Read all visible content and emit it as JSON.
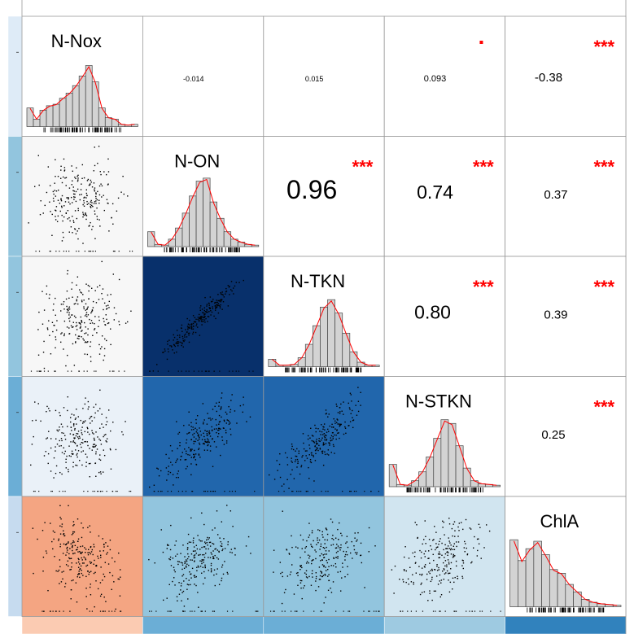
{
  "chart_data": {
    "type": "scatter",
    "variables": [
      "N-Nox",
      "N-ON",
      "N-TKN",
      "N-STKN",
      "ChlA"
    ],
    "correlations": [
      {
        "row": 0,
        "col": 1,
        "r": -0.014,
        "label": "-0.014",
        "stars": ""
      },
      {
        "row": 0,
        "col": 2,
        "r": 0.015,
        "label": "0.015",
        "stars": ""
      },
      {
        "row": 0,
        "col": 3,
        "r": 0.093,
        "label": "0.093",
        "stars": "·"
      },
      {
        "row": 0,
        "col": 4,
        "r": -0.38,
        "label": "-0.38",
        "stars": "***"
      },
      {
        "row": 1,
        "col": 2,
        "r": 0.96,
        "label": "0.96",
        "stars": "***"
      },
      {
        "row": 1,
        "col": 3,
        "r": 0.74,
        "label": "0.74",
        "stars": "***"
      },
      {
        "row": 1,
        "col": 4,
        "r": 0.37,
        "label": "0.37",
        "stars": "***"
      },
      {
        "row": 2,
        "col": 3,
        "r": 0.8,
        "label": "0.80",
        "stars": "***"
      },
      {
        "row": 2,
        "col": 4,
        "r": 0.39,
        "label": "0.39",
        "stars": "***"
      },
      {
        "row": 3,
        "col": 4,
        "r": 0.25,
        "label": "0.25",
        "stars": "***"
      }
    ],
    "histograms": [
      [
        0.25,
        0.1,
        0.22,
        0.28,
        0.3,
        0.38,
        0.45,
        0.55,
        0.68,
        0.82,
        0.6,
        0.25,
        0.12,
        0.1,
        0.03,
        0.02,
        0.03
      ],
      [
        0.2,
        0.03,
        0.02,
        0.1,
        0.25,
        0.45,
        0.68,
        0.88,
        0.92,
        0.6,
        0.38,
        0.2,
        0.1,
        0.06,
        0.03,
        0.02
      ],
      [
        0.1,
        0.02,
        0.02,
        0.03,
        0.12,
        0.3,
        0.55,
        0.8,
        0.9,
        0.72,
        0.45,
        0.2,
        0.06,
        0.02,
        0.02
      ],
      [
        0.3,
        0.03,
        0.02,
        0.08,
        0.2,
        0.4,
        0.65,
        0.9,
        0.85,
        0.55,
        0.25,
        0.08,
        0.04,
        0.03,
        0.02
      ],
      [
        0.9,
        0.62,
        0.78,
        0.88,
        0.7,
        0.5,
        0.45,
        0.3,
        0.2,
        0.1,
        0.06,
        0.04,
        0.03,
        0.02
      ]
    ],
    "colors": {
      "strong_positive": "#08306b",
      "positive_high": "#2166ac",
      "positive_mid": "#4393c3",
      "positive_low": "#92c5de",
      "positive_faint": "#d1e5f0",
      "near_zero": "#f7f7f7",
      "negative": "#f4a582",
      "stars": "#ff0000",
      "hist_fill": "#d3d3d3",
      "density_line": "#ff0000",
      "grid": "#999999"
    }
  }
}
